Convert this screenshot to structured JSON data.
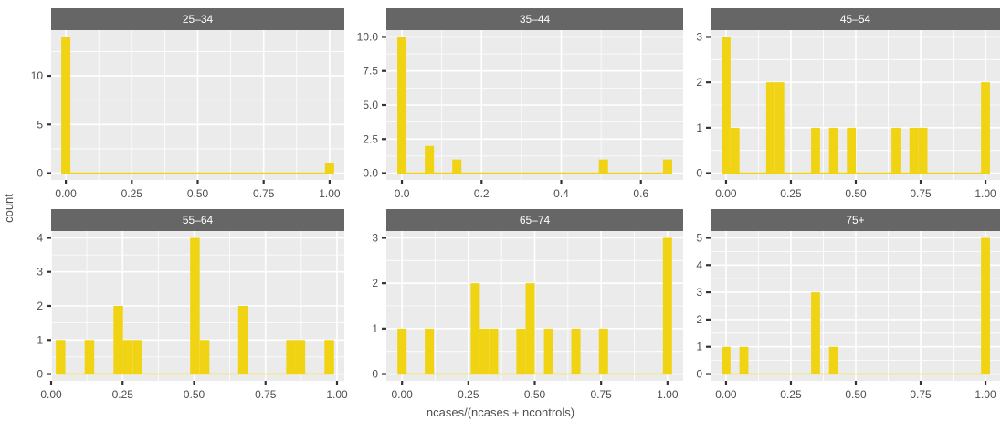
{
  "chart_data": {
    "type": "bar",
    "xlabel": "ncases/(ncases + ncontrols)",
    "ylabel": "count",
    "bar_color": "#F0D413",
    "strip_color": "#666666",
    "panel_bg": "#EBEBEB",
    "panels": [
      {
        "label": "25–34",
        "xlim": [
          -0.035,
          1.035
        ],
        "xticks": [
          0,
          0.25,
          0.5,
          0.75,
          1
        ],
        "xtick_labels": [
          "0.00",
          "0.25",
          "0.50",
          "0.75",
          "1.00"
        ],
        "ylim": [
          -0.7,
          14.7
        ],
        "yticks": [
          0,
          5,
          10
        ],
        "ytick_labels": [
          "0",
          "5",
          "10"
        ],
        "bin_width": 0.0345,
        "bins": [
          {
            "x": 0.0,
            "count": 14
          },
          {
            "x": 1.0,
            "count": 1
          }
        ]
      },
      {
        "label": "35–44",
        "xlim": [
          -0.023,
          0.69
        ],
        "xticks": [
          0,
          0.2,
          0.4,
          0.6
        ],
        "xtick_labels": [
          "0.0",
          "0.2",
          "0.4",
          "0.6"
        ],
        "ylim": [
          -0.5,
          10.5
        ],
        "yticks": [
          0,
          2.5,
          5,
          7.5,
          10
        ],
        "ytick_labels": [
          "0.0",
          "2.5",
          "5.0",
          "7.5",
          "10.0"
        ],
        "bin_width": 0.023,
        "bins": [
          {
            "x": 0.0,
            "count": 10
          },
          {
            "x": 0.069,
            "count": 2
          },
          {
            "x": 0.138,
            "count": 1
          },
          {
            "x": 0.506,
            "count": 1
          },
          {
            "x": 0.667,
            "count": 1
          }
        ]
      },
      {
        "label": "45–54",
        "xlim": [
          -0.035,
          1.035
        ],
        "xticks": [
          0,
          0.25,
          0.5,
          0.75,
          1
        ],
        "xtick_labels": [
          "0.00",
          "0.25",
          "0.50",
          "0.75",
          "1.00"
        ],
        "ylim": [
          -0.15,
          3.15
        ],
        "yticks": [
          0,
          1,
          2,
          3
        ],
        "ytick_labels": [
          "0",
          "1",
          "2",
          "3"
        ],
        "bin_width": 0.0345,
        "bins": [
          {
            "x": 0.0,
            "count": 3
          },
          {
            "x": 0.0345,
            "count": 1
          },
          {
            "x": 0.172,
            "count": 2
          },
          {
            "x": 0.207,
            "count": 2
          },
          {
            "x": 0.345,
            "count": 1
          },
          {
            "x": 0.414,
            "count": 1
          },
          {
            "x": 0.483,
            "count": 1
          },
          {
            "x": 0.655,
            "count": 1
          },
          {
            "x": 0.724,
            "count": 1
          },
          {
            "x": 0.759,
            "count": 1
          },
          {
            "x": 1.0,
            "count": 2
          }
        ]
      },
      {
        "label": "55–64",
        "xlim": [
          -0.0,
          1.0
        ],
        "xticks": [
          0,
          0.25,
          0.5,
          0.75,
          1
        ],
        "xtick_labels": [
          "0.00",
          "0.25",
          "0.50",
          "0.75",
          "1.00"
        ],
        "ylim": [
          -0.2,
          4.2
        ],
        "yticks": [
          0,
          1,
          2,
          3,
          4
        ],
        "ytick_labels": [
          "0",
          "1",
          "2",
          "3",
          "4"
        ],
        "bin_width": 0.0335,
        "bins": [
          {
            "x": 0.033,
            "count": 1
          },
          {
            "x": 0.134,
            "count": 1
          },
          {
            "x": 0.235,
            "count": 2
          },
          {
            "x": 0.268,
            "count": 1
          },
          {
            "x": 0.302,
            "count": 1
          },
          {
            "x": 0.503,
            "count": 4
          },
          {
            "x": 0.537,
            "count": 1
          },
          {
            "x": 0.671,
            "count": 2
          },
          {
            "x": 0.839,
            "count": 1
          },
          {
            "x": 0.872,
            "count": 1
          },
          {
            "x": 0.973,
            "count": 1
          }
        ]
      },
      {
        "label": "65–74",
        "xlim": [
          -0.035,
          1.035
        ],
        "xticks": [
          0,
          0.25,
          0.5,
          0.75,
          1
        ],
        "xtick_labels": [
          "0.00",
          "0.25",
          "0.50",
          "0.75",
          "1.00"
        ],
        "ylim": [
          -0.15,
          3.15
        ],
        "yticks": [
          0,
          1,
          2,
          3
        ],
        "ytick_labels": [
          "0",
          "1",
          "2",
          "3"
        ],
        "bin_width": 0.0345,
        "bins": [
          {
            "x": 0.0,
            "count": 1
          },
          {
            "x": 0.103,
            "count": 1
          },
          {
            "x": 0.276,
            "count": 2
          },
          {
            "x": 0.31,
            "count": 1
          },
          {
            "x": 0.345,
            "count": 1
          },
          {
            "x": 0.448,
            "count": 1
          },
          {
            "x": 0.483,
            "count": 2
          },
          {
            "x": 0.552,
            "count": 1
          },
          {
            "x": 0.655,
            "count": 1
          },
          {
            "x": 0.759,
            "count": 1
          },
          {
            "x": 1.0,
            "count": 3
          }
        ]
      },
      {
        "label": "75+",
        "xlim": [
          -0.035,
          1.035
        ],
        "xticks": [
          0,
          0.25,
          0.5,
          0.75,
          1
        ],
        "xtick_labels": [
          "0.00",
          "0.25",
          "0.50",
          "0.75",
          "1.00"
        ],
        "ylim": [
          -0.25,
          5.25
        ],
        "yticks": [
          0,
          1,
          2,
          3,
          4,
          5
        ],
        "ytick_labels": [
          "0",
          "1",
          "2",
          "3",
          "4",
          "5"
        ],
        "bin_width": 0.0345,
        "bins": [
          {
            "x": 0.0,
            "count": 1
          },
          {
            "x": 0.069,
            "count": 1
          },
          {
            "x": 0.345,
            "count": 3
          },
          {
            "x": 0.414,
            "count": 1
          },
          {
            "x": 1.0,
            "count": 5
          }
        ]
      }
    ]
  }
}
